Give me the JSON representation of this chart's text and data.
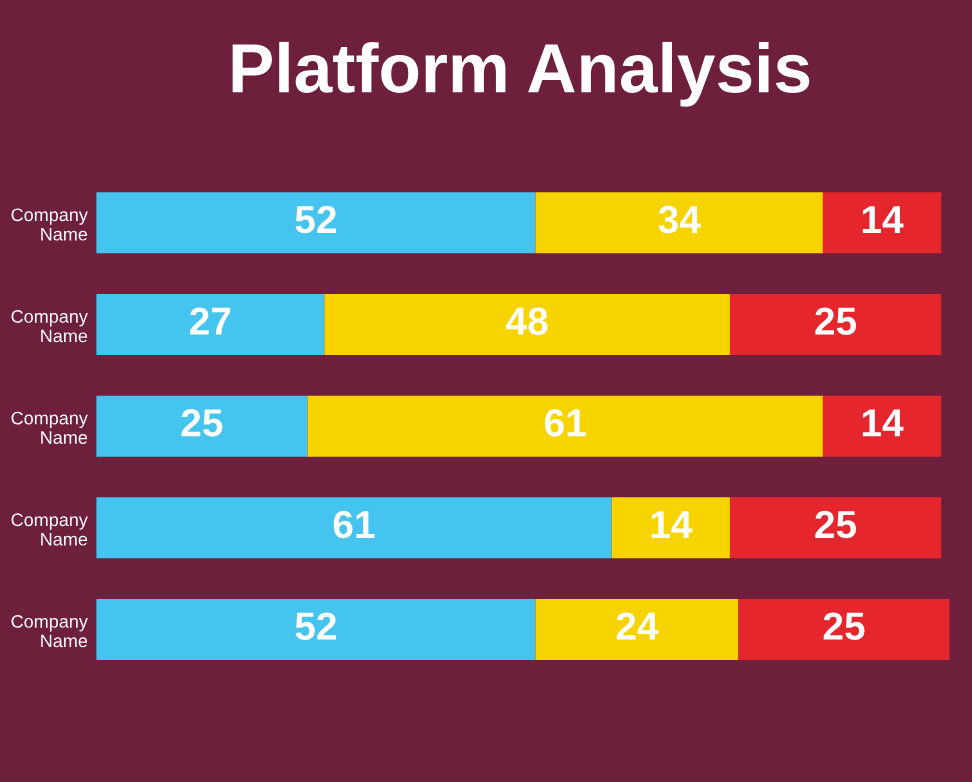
{
  "chart_data": {
    "type": "bar",
    "orientation": "horizontal",
    "stacked": true,
    "title": "Platform Analysis",
    "categories": [
      "Company Name",
      "Company Name",
      "Company Name",
      "Company Name",
      "Company Name"
    ],
    "series": [
      {
        "color": "#45c4ef",
        "values": [
          52,
          27,
          25,
          61,
          52
        ]
      },
      {
        "color": "#f7d400",
        "values": [
          34,
          48,
          61,
          14,
          24
        ]
      },
      {
        "color": "#e5262d",
        "values": [
          14,
          25,
          14,
          25,
          25
        ]
      }
    ],
    "data_labels": true,
    "tick_labels": "y",
    "grid": false,
    "legend": false
  }
}
